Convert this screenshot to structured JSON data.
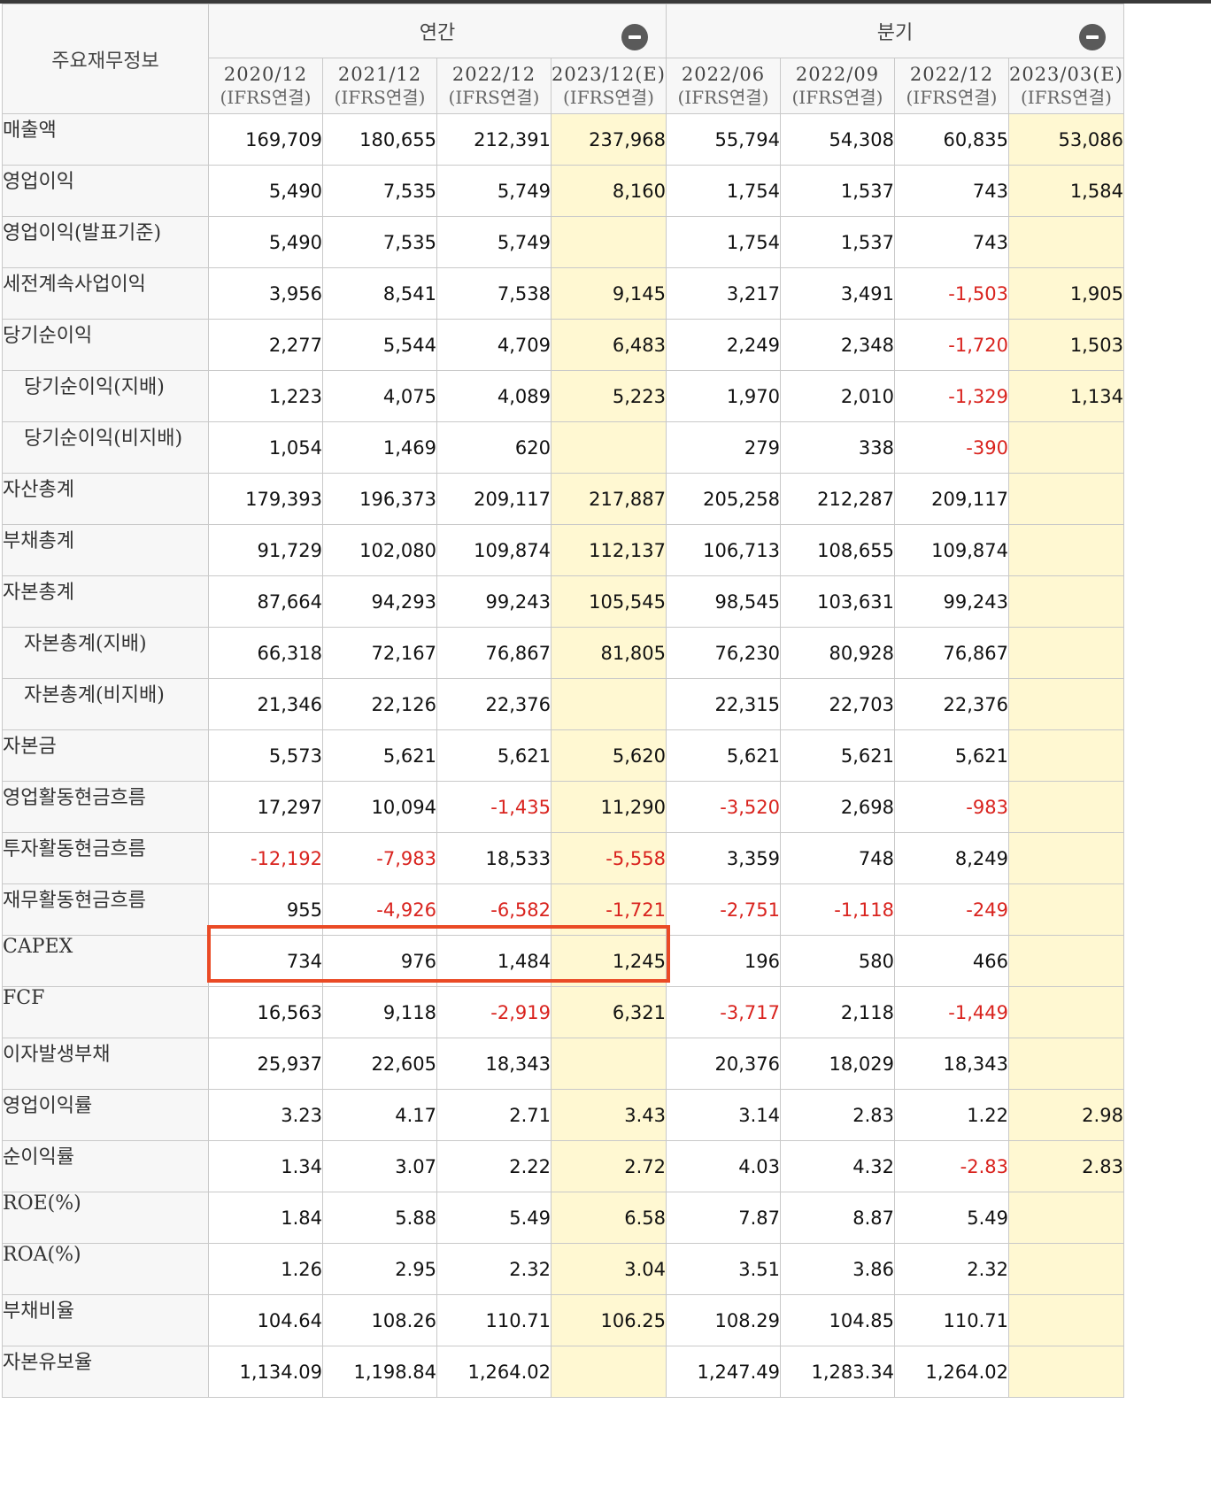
{
  "header": {
    "corner_label": "주요재무정보",
    "groups": [
      {
        "title": "연간"
      },
      {
        "title": "분기"
      }
    ],
    "periods": [
      {
        "period": "2020/12",
        "standard": "(IFRS연결)"
      },
      {
        "period": "2021/12",
        "standard": "(IFRS연결)"
      },
      {
        "period": "2022/12",
        "standard": "(IFRS연결)"
      },
      {
        "period": "2023/12(E)",
        "standard": "(IFRS연결)"
      },
      {
        "period": "2022/06",
        "standard": "(IFRS연결)"
      },
      {
        "period": "2022/09",
        "standard": "(IFRS연결)"
      },
      {
        "period": "2022/12",
        "standard": "(IFRS연결)"
      },
      {
        "period": "2023/03(E)",
        "standard": "(IFRS연결)"
      }
    ]
  },
  "rows": [
    {
      "label": "매출액",
      "indent": false,
      "values": [
        "169,709",
        "180,655",
        "212,391",
        "237,968",
        "55,794",
        "54,308",
        "60,835",
        "53,086"
      ]
    },
    {
      "label": "영업이익",
      "indent": false,
      "values": [
        "5,490",
        "7,535",
        "5,749",
        "8,160",
        "1,754",
        "1,537",
        "743",
        "1,584"
      ]
    },
    {
      "label": "영업이익(발표기준)",
      "indent": false,
      "values": [
        "5,490",
        "7,535",
        "5,749",
        "",
        "1,754",
        "1,537",
        "743",
        ""
      ]
    },
    {
      "label": "세전계속사업이익",
      "indent": false,
      "values": [
        "3,956",
        "8,541",
        "7,538",
        "9,145",
        "3,217",
        "3,491",
        "-1,503",
        "1,905"
      ]
    },
    {
      "label": "당기순이익",
      "indent": false,
      "values": [
        "2,277",
        "5,544",
        "4,709",
        "6,483",
        "2,249",
        "2,348",
        "-1,720",
        "1,503"
      ]
    },
    {
      "label": "당기순이익(지배)",
      "indent": true,
      "values": [
        "1,223",
        "4,075",
        "4,089",
        "5,223",
        "1,970",
        "2,010",
        "-1,329",
        "1,134"
      ]
    },
    {
      "label": "당기순이익(비지배)",
      "indent": true,
      "values": [
        "1,054",
        "1,469",
        "620",
        "",
        "279",
        "338",
        "-390",
        ""
      ]
    },
    {
      "label": "자산총계",
      "indent": false,
      "values": [
        "179,393",
        "196,373",
        "209,117",
        "217,887",
        "205,258",
        "212,287",
        "209,117",
        ""
      ]
    },
    {
      "label": "부채총계",
      "indent": false,
      "values": [
        "91,729",
        "102,080",
        "109,874",
        "112,137",
        "106,713",
        "108,655",
        "109,874",
        ""
      ]
    },
    {
      "label": "자본총계",
      "indent": false,
      "values": [
        "87,664",
        "94,293",
        "99,243",
        "105,545",
        "98,545",
        "103,631",
        "99,243",
        ""
      ]
    },
    {
      "label": "자본총계(지배)",
      "indent": true,
      "values": [
        "66,318",
        "72,167",
        "76,867",
        "81,805",
        "76,230",
        "80,928",
        "76,867",
        ""
      ]
    },
    {
      "label": "자본총계(비지배)",
      "indent": true,
      "values": [
        "21,346",
        "22,126",
        "22,376",
        "",
        "22,315",
        "22,703",
        "22,376",
        ""
      ]
    },
    {
      "label": "자본금",
      "indent": false,
      "values": [
        "5,573",
        "5,621",
        "5,621",
        "5,620",
        "5,621",
        "5,621",
        "5,621",
        ""
      ]
    },
    {
      "label": "영업활동현금흐름",
      "indent": false,
      "values": [
        "17,297",
        "10,094",
        "-1,435",
        "11,290",
        "-3,520",
        "2,698",
        "-983",
        ""
      ]
    },
    {
      "label": "투자활동현금흐름",
      "indent": false,
      "values": [
        "-12,192",
        "-7,983",
        "18,533",
        "-5,558",
        "3,359",
        "748",
        "8,249",
        ""
      ]
    },
    {
      "label": "재무활동현금흐름",
      "indent": false,
      "values": [
        "955",
        "-4,926",
        "-6,582",
        "-1,721",
        "-2,751",
        "-1,118",
        "-249",
        ""
      ]
    },
    {
      "label": "CAPEX",
      "indent": false,
      "values": [
        "734",
        "976",
        "1,484",
        "1,245",
        "196",
        "580",
        "466",
        ""
      ]
    },
    {
      "label": "FCF",
      "indent": false,
      "values": [
        "16,563",
        "9,118",
        "-2,919",
        "6,321",
        "-3,717",
        "2,118",
        "-1,449",
        ""
      ]
    },
    {
      "label": "이자발생부채",
      "indent": false,
      "values": [
        "25,937",
        "22,605",
        "18,343",
        "",
        "20,376",
        "18,029",
        "18,343",
        ""
      ]
    },
    {
      "label": "영업이익률",
      "indent": false,
      "values": [
        "3.23",
        "4.17",
        "2.71",
        "3.43",
        "3.14",
        "2.83",
        "1.22",
        "2.98"
      ]
    },
    {
      "label": "순이익률",
      "indent": false,
      "values": [
        "1.34",
        "3.07",
        "2.22",
        "2.72",
        "4.03",
        "4.32",
        "-2.83",
        "2.83"
      ]
    },
    {
      "label": "ROE(%)",
      "indent": false,
      "values": [
        "1.84",
        "5.88",
        "5.49",
        "6.58",
        "7.87",
        "8.87",
        "5.49",
        ""
      ]
    },
    {
      "label": "ROA(%)",
      "indent": false,
      "values": [
        "1.26",
        "2.95",
        "2.32",
        "3.04",
        "3.51",
        "3.86",
        "2.32",
        ""
      ]
    },
    {
      "label": "부채비율",
      "indent": false,
      "values": [
        "104.64",
        "108.26",
        "110.71",
        "106.25",
        "108.29",
        "104.85",
        "110.71",
        ""
      ]
    },
    {
      "label": "자본유보율",
      "indent": false,
      "values": [
        "1,134.09",
        "1,198.84",
        "1,264.02",
        "",
        "1,247.49",
        "1,283.34",
        "1,264.02",
        ""
      ]
    }
  ],
  "estimate_columns": [
    3,
    7
  ],
  "highlighted_row": "CAPEX",
  "colors": {
    "negative": "#d9231e",
    "estimate_bg": "#fff8d2",
    "highlight_border": "#ea4a25",
    "label_bg": "#f7f7f7"
  }
}
